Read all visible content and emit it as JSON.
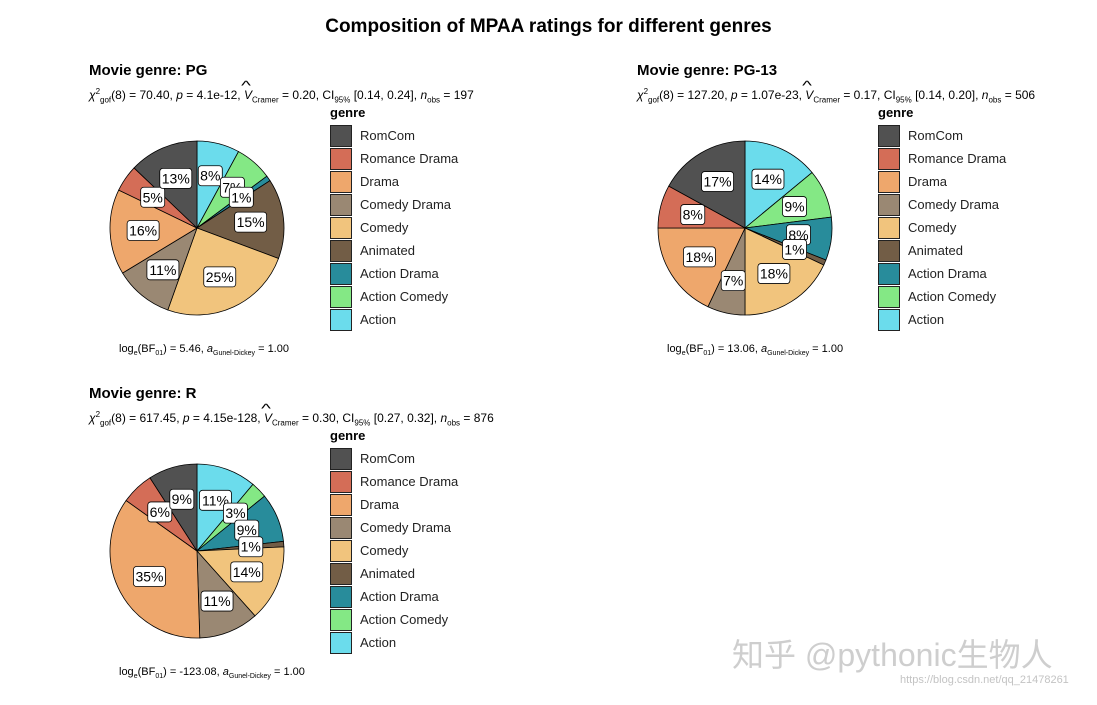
{
  "chart_data": {
    "type": "pie",
    "title": "Composition of MPAA ratings for different genres",
    "legend_title": "genre",
    "legend_position": "right",
    "categories": [
      "RomCom",
      "Romance Drama",
      "Drama",
      "Comedy Drama",
      "Comedy",
      "Animated",
      "Action Drama",
      "Action Comedy",
      "Action"
    ],
    "colors": {
      "RomCom": "#515151",
      "Romance Drama": "#D46D57",
      "Drama": "#EEA76C",
      "Comedy Drama": "#9A8873",
      "Comedy": "#F1C47D",
      "Animated": "#725D46",
      "Action Drama": "#288C9B",
      "Action Comedy": "#84E885",
      "Action": "#6BDCEC"
    },
    "panels": [
      {
        "title": "Movie genre: PG",
        "df": "8",
        "chi2": "70.40",
        "p": "4.1e-12",
        "V": "0.20",
        "ci": "[0.14, 0.24]",
        "n": "197",
        "bf": "5.46",
        "a": "1.00",
        "values": {
          "Action": 8,
          "Action Comedy": 7,
          "Action Drama": 1,
          "Animated": 15,
          "Comedy": 25,
          "Comedy Drama": 11,
          "Drama": 16,
          "Romance Drama": 5,
          "RomCom": 13
        }
      },
      {
        "title": "Movie genre: PG-13",
        "df": "8",
        "chi2": "127.20",
        "p": "1.07e-23",
        "V": "0.17",
        "ci": "[0.14, 0.20]",
        "n": "506",
        "bf": "13.06",
        "a": "1.00",
        "values": {
          "Action": 14,
          "Action Comedy": 9,
          "Action Drama": 8,
          "Animated": 1,
          "Comedy": 18,
          "Comedy Drama": 7,
          "Drama": 18,
          "Romance Drama": 8,
          "RomCom": 17
        }
      },
      {
        "title": "Movie genre: R",
        "df": "8",
        "chi2": "617.45",
        "p": "4.15e-128",
        "V": "0.30",
        "ci": "[0.27, 0.32]",
        "n": "876",
        "bf": "-123.08",
        "a": "1.00",
        "values": {
          "Action": 11,
          "Action Comedy": 3,
          "Action Drama": 9,
          "Animated": 1,
          "Comedy": 14,
          "Comedy Drama": 11,
          "Drama": 35,
          "Romance Drama": 6,
          "RomCom": 9
        }
      }
    ]
  },
  "watermark": "知乎 @pythonic生物人",
  "watermark_url": "https://blog.csdn.net/qq_21478261"
}
